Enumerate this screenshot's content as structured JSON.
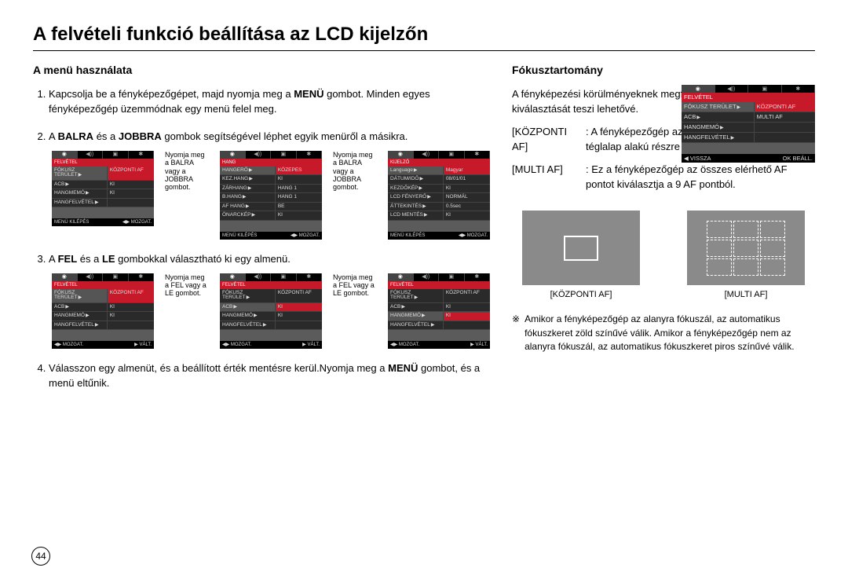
{
  "page_title": "A felvételi funkció beállítása az LCD kijelzőn",
  "page_number": "44",
  "left": {
    "heading": "A menü használata",
    "steps": [
      {
        "pre": "Kapcsolja be a fényképezőgépet, majd nyomja meg a ",
        "bold": "MENÜ",
        "post": " gombot. Minden egyes fényképezőgép üzemmódnak egy menü felel meg."
      },
      {
        "pre": "A ",
        "bold": "BALRA",
        "mid": " és a ",
        "bold2": "JOBBRA",
        "post": " gombok segítségével léphet egyik menüről a másikra."
      },
      {
        "pre": "A ",
        "bold": "FEL",
        "mid": " és a ",
        "bold2": "LE",
        "post": " gombokkal választható ki egy almenü."
      },
      {
        "pre": "Válasszon egy almenüt, és a beállított érték mentésre kerül.Nyomja meg a ",
        "bold": "MENÜ",
        "post": " gombot, és a menü eltűnik."
      }
    ],
    "caption_lr": "Nyomja meg a BALRA vagy a JOBBRA gombot.",
    "caption_ud": "Nyomja meg a FEL vagy a LE gombot.",
    "lcd1": {
      "header": "FELVÉTEL",
      "rows": [
        {
          "k": "FÓKUSZ TERÜLET",
          "v": "KÖZPONTI AF",
          "hi": true
        },
        {
          "k": "ACB",
          "v": "KI"
        },
        {
          "k": "HANGMEMÓ",
          "v": "KI"
        },
        {
          "k": "HANGFELVÉTEL",
          "v": ""
        }
      ],
      "footer_l": "MENÜ  KILÉPÉS",
      "footer_r": "◀▶  MOZGAT."
    },
    "lcd2": {
      "header": "HANG",
      "rows": [
        {
          "k": "HANGERŐ",
          "v": "KÖZEPES",
          "hi": true
        },
        {
          "k": "KEZ.HANG",
          "v": "KI"
        },
        {
          "k": "ZÁRHANG",
          "v": "HANG 1"
        },
        {
          "k": "B.HANG",
          "v": "HANG 1"
        },
        {
          "k": "AF HANG",
          "v": "BE"
        },
        {
          "k": "ÖNARCKÉP",
          "v": "KI"
        }
      ],
      "footer_l": "MENÜ  KILÉPÉS",
      "footer_r": "◀▶  MOZGAT."
    },
    "lcd3": {
      "header": "KIJELZŐ",
      "rows": [
        {
          "k": "Language",
          "v": "Magyar",
          "hi": true
        },
        {
          "k": "DÁTUM/IDŐ",
          "v": "08/01/01"
        },
        {
          "k": "KEZDŐKÉP",
          "v": "KI"
        },
        {
          "k": "LCD FÉNYERŐ",
          "v": "NORMÁL"
        },
        {
          "k": "ÁTTEKINTÉS",
          "v": "0.5sec"
        },
        {
          "k": "LCD MENTÉS",
          "v": "KI"
        }
      ],
      "footer_l": "MENÜ  KILÉPÉS",
      "footer_r": "◀▶  MOZGAT."
    },
    "lcd4": {
      "header": "FELVÉTEL",
      "rows": [
        {
          "k": "FÓKUSZ TERÜLET",
          "v": "KÖZPONTI AF",
          "hi": true
        },
        {
          "k": "ACB",
          "v": "KI"
        },
        {
          "k": "HANGMEMÓ",
          "v": "KI"
        },
        {
          "k": "HANGFELVÉTEL",
          "v": ""
        }
      ],
      "footer_l": "◀▶  MOZGAT.",
      "footer_r": "▶  VÁLT."
    },
    "lcd5": {
      "header": "FELVÉTEL",
      "rows": [
        {
          "k": "FÓKUSZ TERÜLET",
          "v": "KÖZPONTI AF"
        },
        {
          "k": "ACB",
          "v": "KI",
          "hi": true
        },
        {
          "k": "HANGMEMÓ",
          "v": "KI"
        },
        {
          "k": "HANGFELVÉTEL",
          "v": ""
        }
      ],
      "footer_l": "◀▶  MOZGAT.",
      "footer_r": "▶  VÁLT."
    },
    "lcd6": {
      "header": "FELVÉTEL",
      "rows": [
        {
          "k": "FÓKUSZ TERÜLET",
          "v": "KÖZPONTI AF"
        },
        {
          "k": "ACB",
          "v": "KI"
        },
        {
          "k": "HANGMEMÓ",
          "v": "KI",
          "hi": true
        },
        {
          "k": "HANGFELVÉTEL",
          "v": ""
        }
      ],
      "footer_l": "◀▶  MOZGAT.",
      "footer_r": "▶  VÁLT."
    }
  },
  "right": {
    "heading": "Fókusztartomány",
    "intro": "A fényképezési körülményeknek megfelelő fókusztartomány kiválasztását teszi lehetővé.",
    "defs": [
      {
        "term": "[KÖZPONTI AF]",
        "text": ": A fényképezőgép az LCD kijelző közepén levő téglalap alakú részre fókuszál."
      },
      {
        "term": "[MULTI AF]",
        "text": ": Ez a fényképezőgép az összes elérhető AF pontot kiválasztja a 9 AF pontból."
      }
    ],
    "lcd": {
      "header": "FELVÉTEL",
      "rows": [
        {
          "k": "FÓKUSZ TERÜLET",
          "v": "KÖZPONTI AF",
          "hi": true
        },
        {
          "k": "ACB",
          "v": "MULTI AF"
        },
        {
          "k": "HANGMEMÓ",
          "v": ""
        },
        {
          "k": "HANGFELVÉTEL",
          "v": ""
        }
      ],
      "footer_l": "◀  VISSZA",
      "footer_r": "OK  BEÁLL."
    },
    "preview_labels": {
      "center": "[KÖZPONTI AF]",
      "multi": "[MULTI AF]"
    },
    "note": "Amikor a fényképezőgép az alanyra fókuszál, az automatikus fókuszkeret zöld színűvé válik. Amikor a fényképezőgép nem az alanyra fókuszál, az automatikus fókuszkeret piros színűvé válik."
  },
  "icons": {
    "camera": "◉",
    "sound": "◀))",
    "display": "▣",
    "setup": "✱"
  }
}
